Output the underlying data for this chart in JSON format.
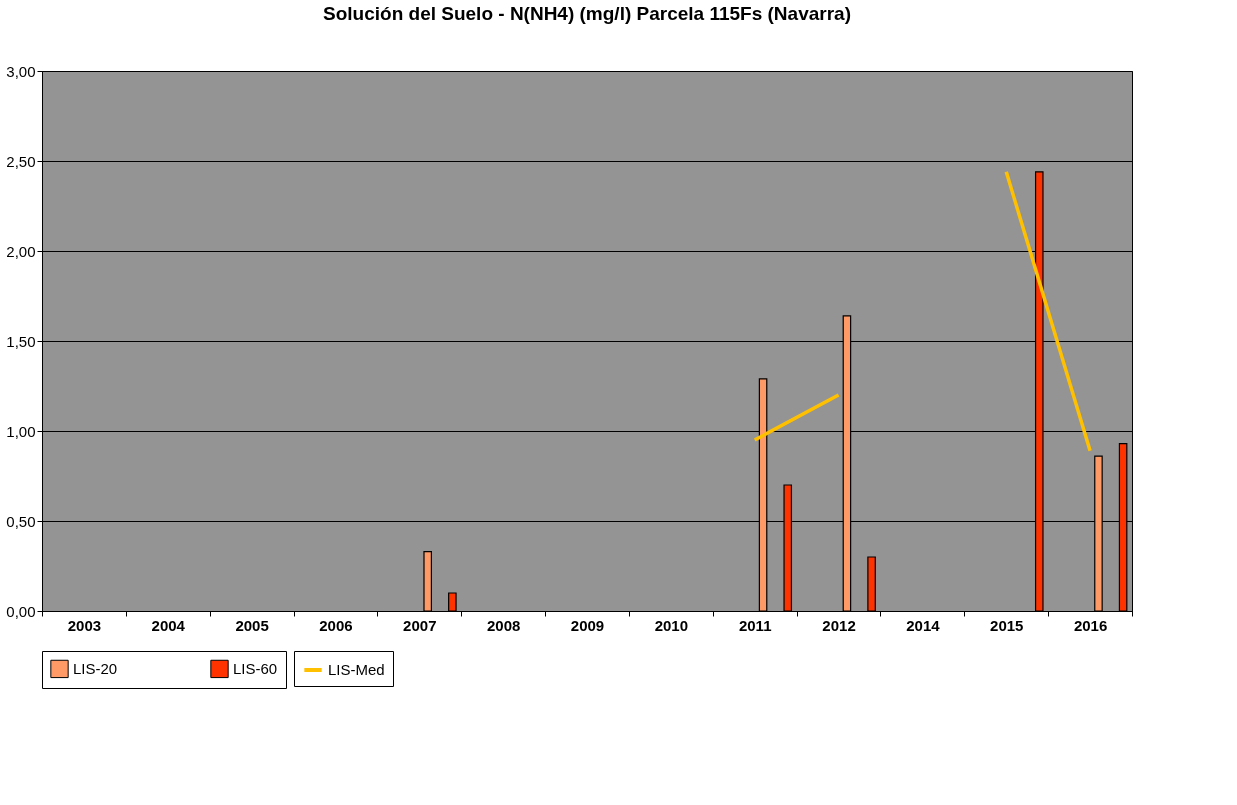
{
  "chart_data": {
    "type": "bar",
    "title": "Solución del Suelo - N(NH4) (mg/l) Parcela 115Fs (Navarra)",
    "categories": [
      "2003",
      "2004",
      "2005",
      "2006",
      "2007",
      "2008",
      "2009",
      "2010",
      "2011",
      "2012",
      "2014",
      "2015",
      "2016"
    ],
    "series": [
      {
        "name": "LIS-20",
        "color": "#ff9966",
        "values": [
          null,
          null,
          null,
          null,
          0.33,
          null,
          null,
          null,
          1.29,
          1.64,
          null,
          null,
          0.86
        ]
      },
      {
        "name": "LIS-60",
        "color": "#ff3300",
        "values": [
          null,
          null,
          null,
          null,
          0.1,
          null,
          null,
          null,
          0.7,
          0.3,
          null,
          2.44,
          0.93
        ]
      },
      {
        "name": "LIS-Med",
        "type": "line",
        "color": "#ffc000",
        "values": [
          null,
          null,
          null,
          null,
          null,
          null,
          null,
          null,
          0.95,
          1.2,
          null,
          2.44,
          0.89
        ]
      }
    ],
    "ylim": [
      0,
      3
    ],
    "yticks": [
      {
        "value": 0,
        "label": "0,00"
      },
      {
        "value": 0.5,
        "label": "0,50"
      },
      {
        "value": 1,
        "label": "1,00"
      },
      {
        "value": 1.5,
        "label": "1,50"
      },
      {
        "value": 2,
        "label": "2,00"
      },
      {
        "value": 2.5,
        "label": "2,50"
      },
      {
        "value": 3,
        "label": "3,00"
      }
    ],
    "grid": "y",
    "legend": "bottom",
    "marker": "none",
    "line_style": "solid"
  }
}
